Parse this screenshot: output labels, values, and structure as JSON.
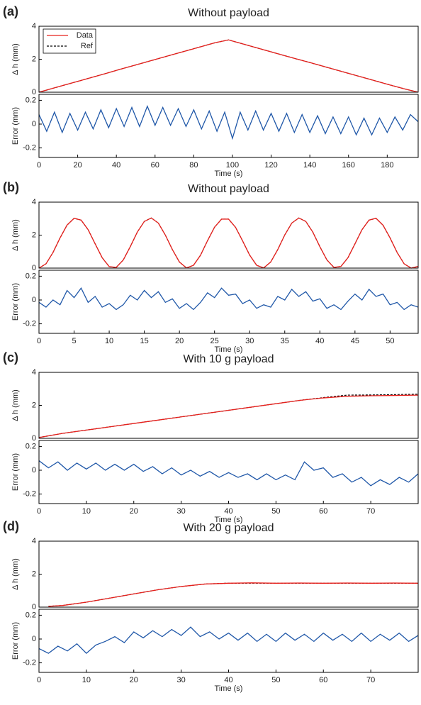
{
  "chart_data": [
    {
      "type": "line",
      "label": "(a)",
      "title": "Without payload",
      "ylabel": "Δ h (mm)",
      "x": [
        0,
        7,
        14,
        21,
        28,
        35,
        42,
        49,
        56,
        63,
        70,
        77,
        84,
        91,
        98,
        105,
        112,
        119,
        126,
        133,
        140,
        147,
        154,
        161,
        168,
        175,
        182,
        189,
        196
      ],
      "series": [
        {
          "name": "Data",
          "color": "#e8201c",
          "values": [
            0,
            0.23,
            0.46,
            0.69,
            0.92,
            1.15,
            1.39,
            1.62,
            1.85,
            2.08,
            2.31,
            2.54,
            2.77,
            3.0,
            3.17,
            2.94,
            2.71,
            2.48,
            2.25,
            2.02,
            1.8,
            1.57,
            1.34,
            1.11,
            0.88,
            0.65,
            0.42,
            0.2,
            0
          ]
        },
        {
          "name": "Ref",
          "color": "#000000",
          "dashed": true,
          "values": [
            0,
            0.23,
            0.46,
            0.69,
            0.92,
            1.15,
            1.39,
            1.62,
            1.85,
            2.08,
            2.31,
            2.54,
            2.77,
            3.0,
            3.17,
            2.94,
            2.71,
            2.48,
            2.25,
            2.02,
            1.8,
            1.57,
            1.34,
            1.11,
            0.88,
            0.65,
            0.42,
            0.2,
            0
          ]
        }
      ],
      "xlim": [
        0,
        196
      ],
      "ylim": [
        0,
        4
      ],
      "yticks": [
        0,
        2,
        4
      ],
      "legend": "upper left"
    },
    {
      "type": "line",
      "ylabel": "Error (mm)",
      "xlabel": "Time (s)",
      "x": [
        0,
        4,
        8,
        12,
        16,
        20,
        24,
        28,
        32,
        36,
        40,
        44,
        48,
        52,
        56,
        60,
        64,
        68,
        72,
        76,
        80,
        84,
        88,
        92,
        96,
        100,
        104,
        108,
        112,
        116,
        120,
        124,
        128,
        132,
        136,
        140,
        144,
        148,
        152,
        156,
        160,
        164,
        168,
        172,
        176,
        180,
        184,
        188,
        192,
        196
      ],
      "series": [
        {
          "color": "#1f57a8",
          "values": [
            0.08,
            -0.06,
            0.1,
            -0.07,
            0.09,
            -0.05,
            0.1,
            -0.04,
            0.12,
            -0.03,
            0.13,
            -0.02,
            0.14,
            -0.02,
            0.15,
            -0.01,
            0.14,
            -0.01,
            0.13,
            -0.02,
            0.12,
            -0.04,
            0.11,
            -0.06,
            0.1,
            -0.12,
            0.1,
            -0.05,
            0.11,
            -0.05,
            0.09,
            -0.06,
            0.09,
            -0.07,
            0.08,
            -0.07,
            0.07,
            -0.08,
            0.06,
            -0.08,
            0.06,
            -0.09,
            0.05,
            -0.09,
            0.05,
            -0.07,
            0.06,
            -0.05,
            0.08,
            0.02
          ]
        }
      ],
      "xlim": [
        0,
        196
      ],
      "xticks": [
        0,
        20,
        40,
        60,
        80,
        100,
        120,
        140,
        160,
        180
      ],
      "ylim": [
        -0.28,
        0.25
      ],
      "yticks": [
        -0.2,
        0,
        0.2
      ]
    },
    {
      "type": "line",
      "label": "(b)",
      "title": "Without payload",
      "ylabel": "Δ h (mm)",
      "x": [
        0,
        1,
        2,
        3,
        4,
        5,
        6,
        7,
        8,
        9,
        10,
        11,
        12,
        13,
        14,
        15,
        16,
        17,
        18,
        19,
        20,
        21,
        22,
        23,
        24,
        25,
        26,
        27,
        28,
        29,
        30,
        31,
        32,
        33,
        34,
        35,
        36,
        37,
        38,
        39,
        40,
        41,
        42,
        43,
        44,
        45,
        46,
        47,
        48,
        49,
        50,
        51,
        52,
        53,
        54
      ],
      "series": [
        {
          "color": "#e8201c",
          "values": [
            0,
            0.26,
            0.95,
            1.83,
            2.61,
            3.02,
            2.91,
            2.33,
            1.47,
            0.63,
            0.09,
            0.04,
            0.49,
            1.3,
            2.18,
            2.83,
            3.04,
            2.73,
            2.0,
            1.12,
            0.37,
            0.01,
            0.17,
            0.78,
            1.66,
            2.48,
            2.97,
            2.97,
            2.47,
            1.65,
            0.79,
            0.17,
            0.01,
            0.37,
            1.12,
            2.01,
            2.73,
            3.04,
            2.83,
            2.18,
            1.3,
            0.5,
            0.04,
            0.1,
            0.63,
            1.47,
            2.33,
            2.91,
            3.02,
            2.6,
            1.83,
            0.95,
            0.26,
            0,
            0.1
          ]
        },
        {
          "color": "#000000",
          "dashed": true,
          "values": [
            0,
            0.26,
            0.95,
            1.83,
            2.61,
            3.02,
            2.91,
            2.33,
            1.47,
            0.63,
            0.09,
            0.04,
            0.49,
            1.3,
            2.18,
            2.83,
            3.04,
            2.73,
            2.0,
            1.12,
            0.37,
            0.01,
            0.17,
            0.78,
            1.66,
            2.48,
            2.97,
            2.97,
            2.47,
            1.65,
            0.79,
            0.17,
            0.01,
            0.37,
            1.12,
            2.01,
            2.73,
            3.04,
            2.83,
            2.18,
            1.3,
            0.5,
            0.04,
            0.1,
            0.63,
            1.47,
            2.33,
            2.91,
            3.02,
            2.6,
            1.83,
            0.95,
            0.26,
            0,
            0.1
          ]
        }
      ],
      "xlim": [
        0,
        54
      ],
      "ylim": [
        0,
        4
      ],
      "yticks": [
        0,
        2,
        4
      ]
    },
    {
      "type": "line",
      "ylabel": "Error (mm)",
      "xlabel": "Time (s)",
      "x": [
        0,
        1,
        2,
        3,
        4,
        5,
        6,
        7,
        8,
        9,
        10,
        11,
        12,
        13,
        14,
        15,
        16,
        17,
        18,
        19,
        20,
        21,
        22,
        23,
        24,
        25,
        26,
        27,
        28,
        29,
        30,
        31,
        32,
        33,
        34,
        35,
        36,
        37,
        38,
        39,
        40,
        41,
        42,
        43,
        44,
        45,
        46,
        47,
        48,
        49,
        50,
        51,
        52,
        53,
        54
      ],
      "series": [
        {
          "color": "#1f57a8",
          "values": [
            -0.02,
            -0.06,
            0.0,
            -0.04,
            0.08,
            0.02,
            0.1,
            -0.02,
            0.03,
            -0.06,
            -0.03,
            -0.08,
            -0.04,
            0.04,
            0.0,
            0.08,
            0.02,
            0.07,
            -0.02,
            0.01,
            -0.07,
            -0.03,
            -0.08,
            -0.02,
            0.06,
            0.02,
            0.1,
            0.04,
            0.05,
            -0.03,
            0.0,
            -0.07,
            -0.04,
            -0.06,
            0.03,
            0.0,
            0.09,
            0.03,
            0.07,
            -0.01,
            0.01,
            -0.07,
            -0.04,
            -0.08,
            -0.01,
            0.05,
            0.0,
            0.09,
            0.03,
            0.05,
            -0.04,
            -0.02,
            -0.08,
            -0.04,
            -0.06
          ]
        }
      ],
      "xlim": [
        0,
        54
      ],
      "xticks": [
        0,
        5,
        10,
        15,
        20,
        25,
        30,
        35,
        40,
        45,
        50
      ],
      "ylim": [
        -0.28,
        0.25
      ],
      "yticks": [
        -0.2,
        0,
        0.2
      ]
    },
    {
      "type": "line",
      "label": "(c)",
      "title": "With 10 g payload",
      "ylabel": "Δ h (mm)",
      "x": [
        0,
        5,
        10,
        15,
        20,
        25,
        30,
        35,
        40,
        45,
        50,
        55,
        60,
        65,
        70,
        75,
        80
      ],
      "series": [
        {
          "color": "#e8201c",
          "values": [
            0.05,
            0.3,
            0.5,
            0.7,
            0.9,
            1.1,
            1.3,
            1.5,
            1.7,
            1.9,
            2.1,
            2.3,
            2.45,
            2.55,
            2.58,
            2.6,
            2.62
          ]
        },
        {
          "color": "#000000",
          "dashed": true,
          "values": [
            0.05,
            0.3,
            0.5,
            0.7,
            0.9,
            1.1,
            1.3,
            1.5,
            1.7,
            1.9,
            2.1,
            2.3,
            2.47,
            2.62,
            2.63,
            2.65,
            2.68
          ]
        }
      ],
      "xlim": [
        0,
        80
      ],
      "ylim": [
        0,
        4
      ],
      "yticks": [
        0,
        2,
        4
      ]
    },
    {
      "type": "line",
      "ylabel": "Error (mm)",
      "xlabel": "Time (s)",
      "x": [
        0,
        2,
        4,
        6,
        8,
        10,
        12,
        14,
        16,
        18,
        20,
        22,
        24,
        26,
        28,
        30,
        32,
        34,
        36,
        38,
        40,
        42,
        44,
        46,
        48,
        50,
        52,
        54,
        56,
        58,
        60,
        62,
        64,
        66,
        68,
        70,
        72,
        74,
        76,
        78,
        80
      ],
      "series": [
        {
          "color": "#1f57a8",
          "values": [
            0.08,
            0.02,
            0.07,
            0.0,
            0.06,
            0.01,
            0.06,
            0.0,
            0.05,
            0.0,
            0.05,
            -0.01,
            0.03,
            -0.03,
            0.02,
            -0.04,
            0.0,
            -0.05,
            -0.01,
            -0.06,
            -0.02,
            -0.06,
            -0.03,
            -0.08,
            -0.03,
            -0.08,
            -0.04,
            -0.08,
            0.07,
            0.0,
            0.02,
            -0.06,
            -0.03,
            -0.1,
            -0.06,
            -0.13,
            -0.08,
            -0.12,
            -0.06,
            -0.1,
            -0.03
          ]
        }
      ],
      "xlim": [
        0,
        80
      ],
      "xticks": [
        0,
        10,
        20,
        30,
        40,
        50,
        60,
        70
      ],
      "ylim": [
        -0.28,
        0.25
      ],
      "yticks": [
        -0.2,
        0,
        0.2
      ]
    },
    {
      "type": "line",
      "label": "(d)",
      "title": "With 20 g payload",
      "ylabel": "Δ h (mm)",
      "x": [
        2,
        5,
        10,
        15,
        20,
        25,
        30,
        35,
        40,
        45,
        50,
        55,
        60,
        65,
        70,
        75,
        80
      ],
      "series": [
        {
          "color": "#e8201c",
          "values": [
            0.05,
            0.1,
            0.3,
            0.55,
            0.8,
            1.05,
            1.25,
            1.4,
            1.45,
            1.47,
            1.45,
            1.46,
            1.45,
            1.46,
            1.45,
            1.46,
            1.45
          ]
        },
        {
          "color": "#000000",
          "dashed": true,
          "values": [
            0.05,
            0.1,
            0.3,
            0.55,
            0.8,
            1.05,
            1.25,
            1.4,
            1.45,
            1.45,
            1.45,
            1.45,
            1.45,
            1.45,
            1.45,
            1.45,
            1.45
          ]
        }
      ],
      "xlim": [
        0,
        80
      ],
      "ylim": [
        0,
        4
      ],
      "yticks": [
        0,
        2,
        4
      ]
    },
    {
      "type": "line",
      "ylabel": "Error (mm)",
      "xlabel": "Time (s)",
      "x": [
        0,
        2,
        4,
        6,
        8,
        10,
        12,
        14,
        16,
        18,
        20,
        22,
        24,
        26,
        28,
        30,
        32,
        34,
        36,
        38,
        40,
        42,
        44,
        46,
        48,
        50,
        52,
        54,
        56,
        58,
        60,
        62,
        64,
        66,
        68,
        70,
        72,
        74,
        76,
        78,
        80
      ],
      "series": [
        {
          "color": "#1f57a8",
          "values": [
            -0.08,
            -0.12,
            -0.06,
            -0.1,
            -0.04,
            -0.12,
            -0.05,
            -0.02,
            0.02,
            -0.03,
            0.06,
            0.01,
            0.07,
            0.02,
            0.08,
            0.03,
            0.1,
            0.02,
            0.06,
            0.0,
            0.05,
            -0.01,
            0.05,
            -0.02,
            0.04,
            -0.02,
            0.05,
            -0.01,
            0.04,
            -0.02,
            0.05,
            -0.01,
            0.04,
            -0.02,
            0.05,
            -0.02,
            0.04,
            -0.01,
            0.05,
            -0.02,
            0.03
          ]
        }
      ],
      "xlim": [
        0,
        80
      ],
      "xticks": [
        0,
        10,
        20,
        30,
        40,
        50,
        60,
        70
      ],
      "ylim": [
        -0.28,
        0.25
      ],
      "yticks": [
        -0.2,
        0,
        0.2
      ]
    }
  ]
}
